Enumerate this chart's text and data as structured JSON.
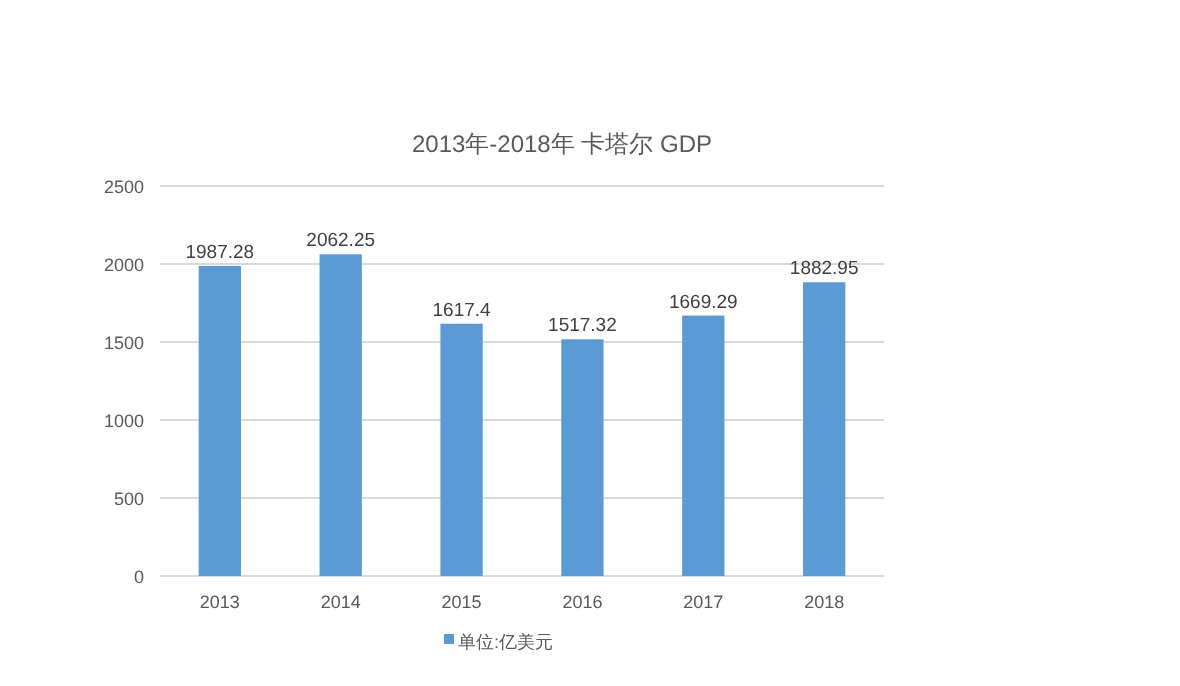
{
  "chart_data": {
    "type": "bar",
    "title": "2013年-2018年 卡塔尔 GDP",
    "categories": [
      "2013",
      "2014",
      "2015",
      "2016",
      "2017",
      "2018"
    ],
    "series": [
      {
        "name": "单位:亿美元",
        "color": "#5b9bd5",
        "values": [
          1987.28,
          2062.25,
          1617.4,
          1517.32,
          1669.29,
          1882.95
        ]
      }
    ],
    "ylim": [
      0,
      2500
    ],
    "yticks": [
      0,
      500,
      1000,
      1500,
      2000,
      2500
    ],
    "grid": "y",
    "legend": "bottom",
    "data_labels": true
  }
}
